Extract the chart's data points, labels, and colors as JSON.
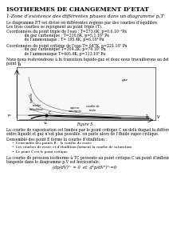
{
  "title": "ISOTHERMES DE CHANGEMENT D’ETAT",
  "section1_title": "1-Zone d’existence des différentes phases dans un diagramme p,T",
  "lines1": [
    "Le diagramme P,T est divisé en différentes régions par des courbes d’équilibre.",
    "Les trois courbes se rejoignent au point triple (T).",
    "Coordonnées du point triple de l’eau : T=273.6K, p=0.6.10⁻²Pa",
    "               du gaz carbonique : T=216.6K, p=5.1.10⁵ Pa",
    "               de l’ammoniaque : T= 195.4K, p=6.10⁴ Pa"
  ],
  "lines2": [
    "Coordonnées du point critique de l’eau T= 647K, p=221.10⁵ Pa",
    "               du gaz carbonique T=304.2K, p=74.10⁵ Pa",
    "               de l’ammoniaque T=405.4K, p=113.10⁵ Pa"
  ],
  "lines3": [
    "Nous nous restreindrons à la transition liquide-gaz et donc nous travaillerons au delà du",
    "point T."
  ],
  "fig_caption": "Figure 5",
  "lines_c1": [
    "La courbe de vaporisation est limitée par le point critique C au-delà duquel la différence",
    "entre liquide et gaz n’est plus possible, on parle alors de l’fluide super-critique."
  ],
  "caption2": "L’ensemble des point E forme la courbe d’ébullition :",
  "bullets": [
    "L’ensemble des points R :  la courbe de rosée",
    "Les courbes de rosée et d’ébullition forment la courbe de saturation",
    "Le point C est le point critique"
  ],
  "lines_c3": [
    "La courbe de pression isotherme à TC présente au point critique C un point d’inflexion, la",
    "tangente dans le diagramme p,V est horizontale:"
  ],
  "equation": "(dp/dV)ᵀᶜ = 0  et  d²p/dV²)ᵀᶜ=0",
  "bg_color": "#ffffff",
  "text_color": "#000000"
}
